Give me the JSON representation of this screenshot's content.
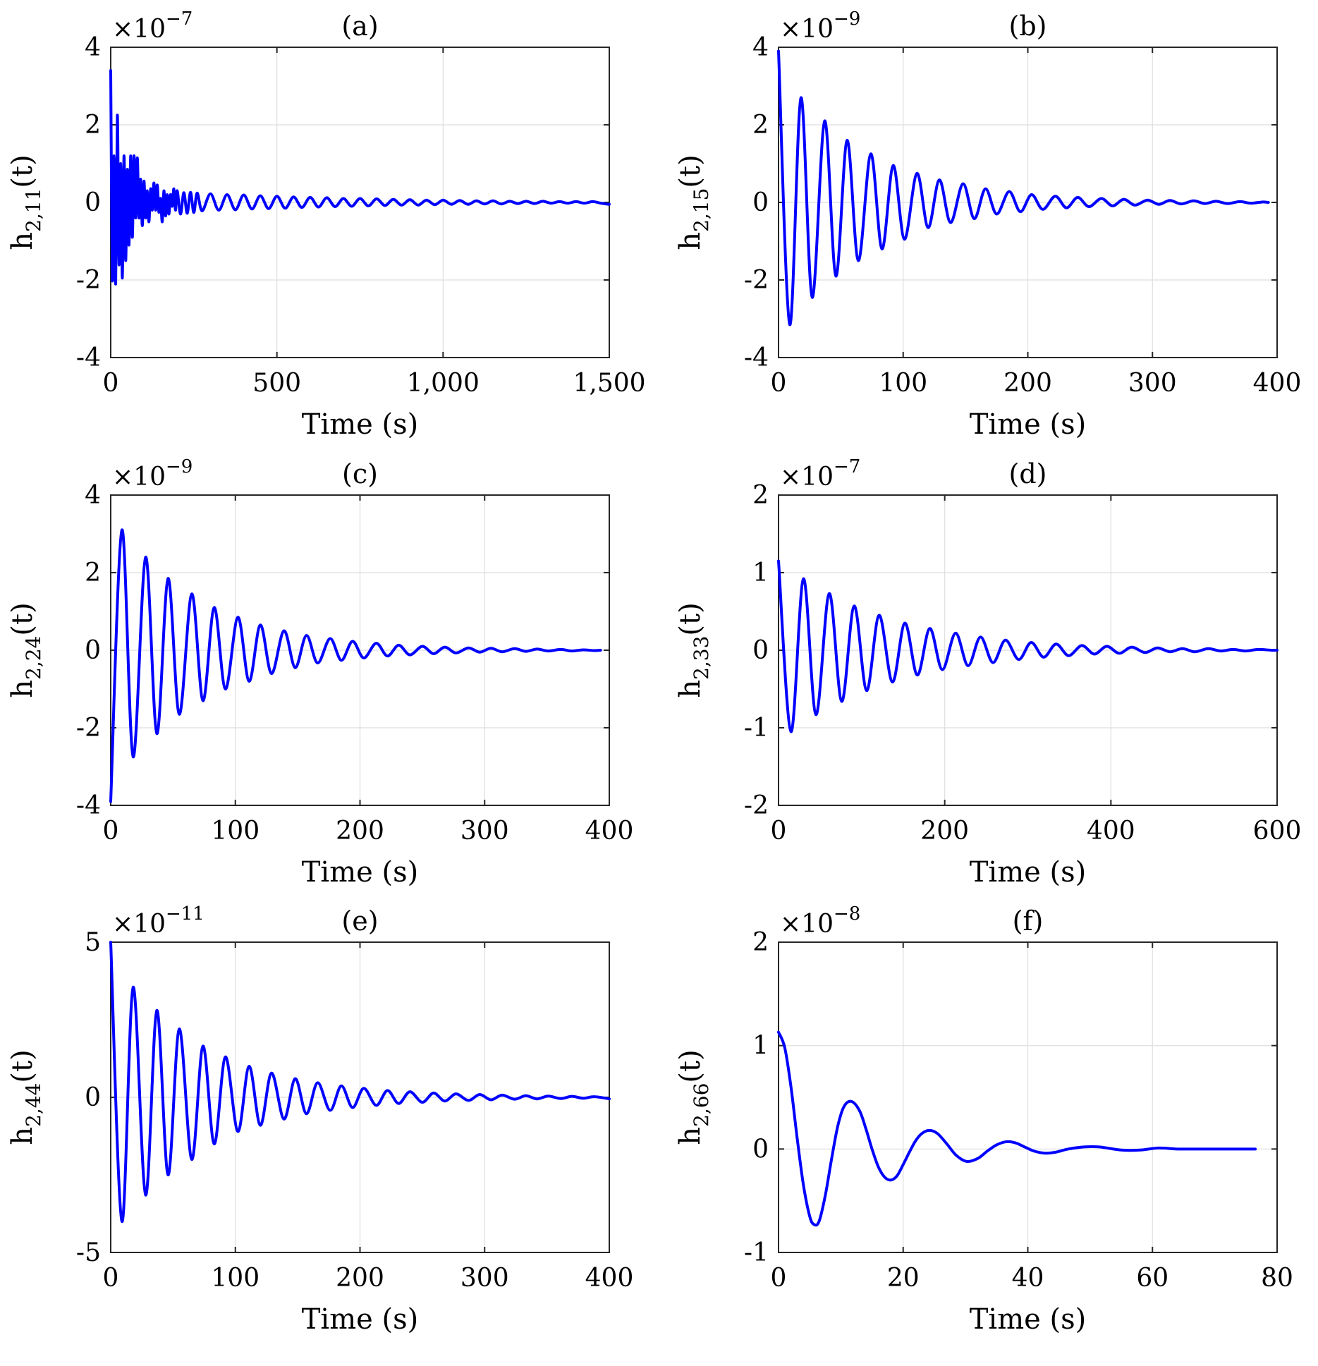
{
  "figure": {
    "background": "#ffffff",
    "line_color": "#0000ff",
    "grid_color": "#dedede"
  },
  "chart_data": [
    {
      "id": "a",
      "type": "line",
      "title": "(a)",
      "xlabel": "Time (s)",
      "ylabel_main": "h",
      "ylabel_sub": "2,11",
      "ylabel_tail": "(t)",
      "exponent_base": "×10",
      "exponent_power": "−7",
      "xlim": [
        0,
        1500
      ],
      "ylim": [
        -4,
        4
      ],
      "xticks": [
        0,
        500,
        1000,
        1500
      ],
      "xticklabels": [
        "0",
        "500",
        "1,000",
        "1,500"
      ],
      "yticks": [
        -4,
        -2,
        0,
        2,
        4
      ],
      "yticklabels": [
        "-4",
        "-2",
        "0",
        "2",
        "4"
      ],
      "series": [
        {
          "name": "h_{2,11}(t)",
          "x": [
            0,
            5,
            10,
            15,
            20,
            25,
            30,
            35,
            40,
            45,
            50,
            55,
            60,
            65,
            70,
            75,
            80,
            85,
            90,
            95,
            100,
            105,
            110,
            115,
            120,
            125,
            130,
            135,
            140,
            145,
            150,
            155,
            160,
            165,
            170,
            175,
            180,
            185,
            190,
            195,
            200,
            210,
            220,
            230,
            240,
            250,
            260,
            275,
            300,
            325,
            350,
            375,
            400,
            425,
            450,
            475,
            500,
            525,
            550,
            575,
            600,
            625,
            650,
            675,
            700,
            725,
            750,
            775,
            800,
            825,
            850,
            875,
            900,
            925,
            950,
            975,
            1000,
            1025,
            1050,
            1075,
            1100,
            1125,
            1150,
            1175,
            1200,
            1225,
            1250,
            1275,
            1300,
            1325,
            1350,
            1375,
            1400,
            1425,
            1450,
            1475,
            1500
          ],
          "y": [
            3.4,
            -2.0,
            1.2,
            -2.1,
            2.25,
            -1.6,
            1.0,
            -1.95,
            1.2,
            -1.5,
            0.85,
            -1.1,
            1.2,
            -0.9,
            1.2,
            -0.4,
            1.15,
            -0.4,
            0.6,
            -0.6,
            0.55,
            -0.4,
            0.3,
            -0.5,
            0.35,
            -0.2,
            0.5,
            -0.2,
            0.45,
            -0.25,
            0.1,
            -0.5,
            0.3,
            -0.35,
            0.2,
            -0.3,
            0.2,
            -0.1,
            0.35,
            -0.2,
            0.3,
            -0.3,
            0.25,
            -0.28,
            0.26,
            -0.26,
            0.24,
            -0.22,
            0.22,
            -0.2,
            0.2,
            -0.19,
            0.19,
            -0.17,
            0.17,
            -0.16,
            0.16,
            -0.15,
            0.14,
            -0.13,
            0.13,
            -0.12,
            0.12,
            -0.11,
            0.1,
            -0.1,
            0.1,
            -0.09,
            0.09,
            -0.08,
            0.08,
            -0.07,
            0.07,
            -0.07,
            0.06,
            -0.06,
            0.06,
            -0.05,
            0.05,
            -0.05,
            0.04,
            -0.04,
            0.04,
            -0.04,
            0.03,
            -0.03,
            0.03,
            -0.03,
            0.03,
            -0.02,
            0.02,
            -0.02,
            0.02,
            -0.02,
            0.02,
            -0.02,
            -0.05
          ]
        }
      ]
    },
    {
      "id": "b",
      "type": "line",
      "title": "(b)",
      "xlabel": "Time (s)",
      "ylabel_main": "h",
      "ylabel_sub": "2,15",
      "ylabel_tail": "(t)",
      "exponent_base": "×10",
      "exponent_power": "−9",
      "xlim": [
        0,
        400
      ],
      "ylim": [
        -4,
        4
      ],
      "xticks": [
        0,
        100,
        200,
        300,
        400
      ],
      "xticklabels": [
        "0",
        "100",
        "200",
        "300",
        "400"
      ],
      "yticks": [
        -4,
        -2,
        0,
        2,
        4
      ],
      "yticklabels": [
        "-4",
        "-2",
        "0",
        "2",
        "4"
      ],
      "series": [
        {
          "name": "h_{2,15}(t)",
          "x": [
            0,
            9,
            18,
            27,
            37,
            46,
            55,
            64,
            74,
            83,
            92,
            101,
            111,
            120,
            129,
            138,
            148,
            157,
            166,
            175,
            185,
            194,
            203,
            212,
            222,
            231,
            240,
            249,
            259,
            268,
            277,
            286,
            296,
            305,
            314,
            323,
            333,
            342,
            351,
            360,
            370,
            379,
            388,
            393
          ],
          "y": [
            3.9,
            -3.15,
            2.7,
            -2.45,
            2.1,
            -1.9,
            1.6,
            -1.5,
            1.25,
            -1.2,
            0.95,
            -0.95,
            0.75,
            -0.65,
            0.58,
            -0.52,
            0.48,
            -0.42,
            0.35,
            -0.3,
            0.28,
            -0.24,
            0.2,
            -0.18,
            0.16,
            -0.14,
            0.13,
            -0.11,
            0.1,
            -0.09,
            0.08,
            -0.07,
            0.06,
            -0.05,
            0.05,
            -0.04,
            0.04,
            -0.03,
            0.03,
            -0.03,
            0.02,
            -0.02,
            0.01,
            0.0
          ]
        }
      ]
    },
    {
      "id": "c",
      "type": "line",
      "title": "(c)",
      "xlabel": "Time (s)",
      "ylabel_main": "h",
      "ylabel_sub": "2,24",
      "ylabel_tail": "(t)",
      "exponent_base": "×10",
      "exponent_power": "−9",
      "xlim": [
        0,
        400
      ],
      "ylim": [
        -4,
        4
      ],
      "xticks": [
        0,
        100,
        200,
        300,
        400
      ],
      "xticklabels": [
        "0",
        "100",
        "200",
        "300",
        "400"
      ],
      "yticks": [
        -4,
        -2,
        0,
        2,
        4
      ],
      "yticklabels": [
        "-4",
        "-2",
        "0",
        "2",
        "4"
      ],
      "series": [
        {
          "name": "h_{2,24}(t)",
          "x": [
            0,
            9,
            18,
            28,
            37,
            46,
            55,
            65,
            74,
            83,
            92,
            102,
            111,
            120,
            129,
            139,
            148,
            157,
            166,
            176,
            185,
            194,
            203,
            213,
            222,
            231,
            240,
            250,
            259,
            268,
            277,
            287,
            296,
            305,
            314,
            324,
            333,
            342,
            351,
            361,
            370,
            379,
            388,
            393
          ],
          "y": [
            -3.9,
            3.1,
            -2.75,
            2.4,
            -2.15,
            1.85,
            -1.65,
            1.45,
            -1.3,
            1.1,
            -1.0,
            0.85,
            -0.8,
            0.65,
            -0.6,
            0.5,
            -0.45,
            0.38,
            -0.33,
            0.3,
            -0.26,
            0.23,
            -0.2,
            0.18,
            -0.15,
            0.13,
            -0.12,
            0.1,
            -0.09,
            0.08,
            -0.07,
            0.06,
            -0.05,
            0.05,
            -0.04,
            0.04,
            -0.03,
            0.03,
            -0.02,
            0.02,
            -0.02,
            0.01,
            -0.01,
            0.0
          ]
        }
      ]
    },
    {
      "id": "d",
      "type": "line",
      "title": "(d)",
      "xlabel": "Time (s)",
      "ylabel_main": "h",
      "ylabel_sub": "2,33",
      "ylabel_tail": "(t)",
      "exponent_base": "×10",
      "exponent_power": "−7",
      "xlim": [
        0,
        600
      ],
      "ylim": [
        -2,
        2
      ],
      "xticks": [
        0,
        200,
        400,
        600
      ],
      "xticklabels": [
        "0",
        "200",
        "400",
        "600"
      ],
      "yticks": [
        -2,
        -1,
        0,
        1,
        2
      ],
      "yticklabels": [
        "-2",
        "-1",
        "0",
        "1",
        "2"
      ],
      "series": [
        {
          "name": "h_{2,33}(t)",
          "x": [
            0,
            15,
            30,
            45,
            61,
            76,
            91,
            106,
            121,
            137,
            152,
            167,
            182,
            197,
            213,
            228,
            243,
            258,
            273,
            289,
            304,
            319,
            334,
            349,
            365,
            380,
            395,
            410,
            425,
            441,
            456,
            471,
            486,
            501,
            517,
            532,
            547,
            562,
            577,
            593,
            600
          ],
          "y": [
            1.15,
            -1.05,
            0.92,
            -0.83,
            0.73,
            -0.66,
            0.57,
            -0.52,
            0.45,
            -0.41,
            0.35,
            -0.32,
            0.28,
            -0.25,
            0.22,
            -0.2,
            0.17,
            -0.16,
            0.13,
            -0.12,
            0.1,
            -0.09,
            0.08,
            -0.07,
            0.06,
            -0.05,
            0.05,
            -0.04,
            0.04,
            -0.03,
            0.03,
            -0.02,
            0.02,
            -0.02,
            0.02,
            -0.01,
            0.01,
            -0.01,
            0.01,
            0.0,
            0.0
          ]
        }
      ]
    },
    {
      "id": "e",
      "type": "line",
      "title": "(e)",
      "xlabel": "Time (s)",
      "ylabel_main": "h",
      "ylabel_sub": "2,44",
      "ylabel_tail": "(t)",
      "exponent_base": "×10",
      "exponent_power": "−11",
      "xlim": [
        0,
        400
      ],
      "ylim": [
        -5,
        5
      ],
      "xticks": [
        0,
        100,
        200,
        300,
        400
      ],
      "xticklabels": [
        "0",
        "100",
        "200",
        "300",
        "400"
      ],
      "yticks": [
        -5,
        0,
        5
      ],
      "yticklabels": [
        "-5",
        "0",
        "5"
      ],
      "series": [
        {
          "name": "h_{2,44}(t)",
          "x": [
            0,
            9,
            18,
            28,
            37,
            46,
            55,
            65,
            74,
            83,
            92,
            102,
            111,
            120,
            129,
            139,
            148,
            157,
            166,
            176,
            185,
            194,
            203,
            213,
            222,
            231,
            240,
            250,
            259,
            268,
            277,
            287,
            296,
            305,
            314,
            324,
            333,
            342,
            351,
            361,
            370,
            379,
            388,
            400
          ],
          "y": [
            5.0,
            -4.0,
            3.55,
            -3.15,
            2.8,
            -2.5,
            2.2,
            -2.0,
            1.65,
            -1.5,
            1.3,
            -1.1,
            1.0,
            -0.9,
            0.78,
            -0.7,
            0.6,
            -0.53,
            0.47,
            -0.42,
            0.37,
            -0.33,
            0.29,
            -0.26,
            0.22,
            -0.2,
            0.18,
            -0.16,
            0.14,
            -0.12,
            0.11,
            -0.1,
            0.09,
            -0.08,
            0.07,
            -0.06,
            0.05,
            -0.05,
            0.04,
            -0.04,
            0.03,
            -0.03,
            0.02,
            -0.05
          ]
        }
      ]
    },
    {
      "id": "f",
      "type": "line",
      "title": "(f)",
      "xlabel": "Time (s)",
      "ylabel_main": "h",
      "ylabel_sub": "2,66",
      "ylabel_tail": "(t)",
      "exponent_base": "×10",
      "exponent_power": "−8",
      "xlim": [
        0,
        80
      ],
      "ylim": [
        -1,
        2
      ],
      "xticks": [
        0,
        20,
        40,
        60,
        80
      ],
      "xticklabels": [
        "0",
        "20",
        "40",
        "60",
        "80"
      ],
      "yticks": [
        -1,
        0,
        1,
        2
      ],
      "yticklabels": [
        "-1",
        "0",
        "1",
        "2"
      ],
      "series": [
        {
          "name": "h_{2,66}(t)",
          "x": [
            0,
            1,
            2,
            3,
            4,
            5,
            5.7,
            6.5,
            7.5,
            8.5,
            9.5,
            10.5,
            11.7,
            13,
            14,
            15,
            16,
            17,
            18,
            19,
            20,
            21,
            22,
            23,
            24.2,
            25.5,
            27,
            28.5,
            30.2,
            32,
            33.5,
            35,
            36.5,
            38,
            39.5,
            41,
            42.8,
            44.5,
            46.5,
            49,
            51.5,
            55,
            58,
            61,
            64,
            67,
            70,
            73,
            76.5
          ],
          "y": [
            1.13,
            0.98,
            0.6,
            0.1,
            -0.35,
            -0.65,
            -0.73,
            -0.7,
            -0.45,
            -0.1,
            0.22,
            0.41,
            0.46,
            0.37,
            0.2,
            0.0,
            -0.17,
            -0.27,
            -0.3,
            -0.26,
            -0.15,
            -0.03,
            0.08,
            0.15,
            0.18,
            0.15,
            0.05,
            -0.06,
            -0.12,
            -0.09,
            -0.02,
            0.04,
            0.07,
            0.06,
            0.02,
            -0.02,
            -0.04,
            -0.03,
            0.0,
            0.02,
            0.02,
            -0.01,
            -0.01,
            0.01,
            0.0,
            0.0,
            0.0,
            0.0,
            0.0
          ]
        }
      ]
    }
  ]
}
